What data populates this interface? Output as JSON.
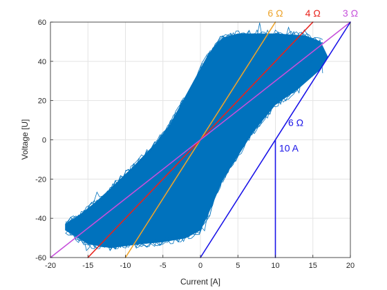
{
  "chart_data": {
    "type": "line",
    "title": "",
    "xlabel": "Current [A]",
    "ylabel": "Voltage [U]",
    "xlim": [
      -20,
      20
    ],
    "ylim": [
      -60,
      60
    ],
    "xticks": [
      -20,
      -15,
      -10,
      -5,
      0,
      5,
      10,
      15,
      20
    ],
    "yticks": [
      -60,
      -40,
      -20,
      0,
      20,
      40,
      60
    ],
    "grid": true,
    "series": [
      {
        "color": "#0072BD",
        "envelope": {
          "upper": [
            [
              -18,
              -43
            ],
            [
              -16,
              -38
            ],
            [
              -14,
              -32
            ],
            [
              -12,
              -25
            ],
            [
              -9,
              -14
            ],
            [
              -6,
              -2
            ],
            [
              -4,
              8
            ],
            [
              -2,
              22
            ],
            [
              0,
              36
            ],
            [
              1,
              43
            ],
            [
              2,
              48
            ],
            [
              3,
              52
            ],
            [
              5,
              54
            ],
            [
              10,
              54
            ],
            [
              14,
              53
            ],
            [
              16,
              50
            ]
          ],
          "lower": [
            [
              16,
              50
            ],
            [
              17,
              42
            ],
            [
              16,
              36
            ],
            [
              13,
              26
            ],
            [
              10,
              18
            ],
            [
              7,
              4
            ],
            [
              5,
              -8
            ],
            [
              3,
              -20
            ],
            [
              1,
              -38
            ],
            [
              0,
              -46
            ],
            [
              -2,
              -50
            ],
            [
              -5,
              -52
            ],
            [
              -8,
              -53
            ],
            [
              -12,
              -55
            ],
            [
              -15,
              -53
            ],
            [
              -18,
              -46
            ]
          ]
        }
      },
      {
        "name": "6 Ω",
        "color": "#EDA32A",
        "x": [
          -10,
          10
        ],
        "y": [
          -60,
          60
        ]
      },
      {
        "name": "4 Ω",
        "color": "#E8221B",
        "x": [
          -15,
          15
        ],
        "y": [
          -60,
          60
        ]
      },
      {
        "name": "3 Ω",
        "color": "#C64FDA",
        "x": [
          -20,
          20
        ],
        "y": [
          -60,
          60
        ]
      },
      {
        "name": "6 Ω",
        "color": "#1A14E8",
        "x": [
          0,
          20
        ],
        "y": [
          -60,
          60
        ]
      },
      {
        "name": "10 A",
        "color": "#1A14E8",
        "x": [
          10,
          10
        ],
        "y": [
          -60,
          0
        ]
      }
    ],
    "annotations": [
      {
        "text": "6 Ω",
        "color": "#EDA32A",
        "x": 10,
        "y": 60
      },
      {
        "text": "4 Ω",
        "color": "#E8221B",
        "x": 15,
        "y": 60
      },
      {
        "text": "3 Ω",
        "color": "#C64FDA",
        "x": 20,
        "y": 60
      },
      {
        "text": "6 Ω",
        "color": "#1A14E8",
        "x": 11.7,
        "y": 7
      },
      {
        "text": "10 A",
        "color": "#1A14E8",
        "x": 10.5,
        "y": -6
      }
    ]
  }
}
